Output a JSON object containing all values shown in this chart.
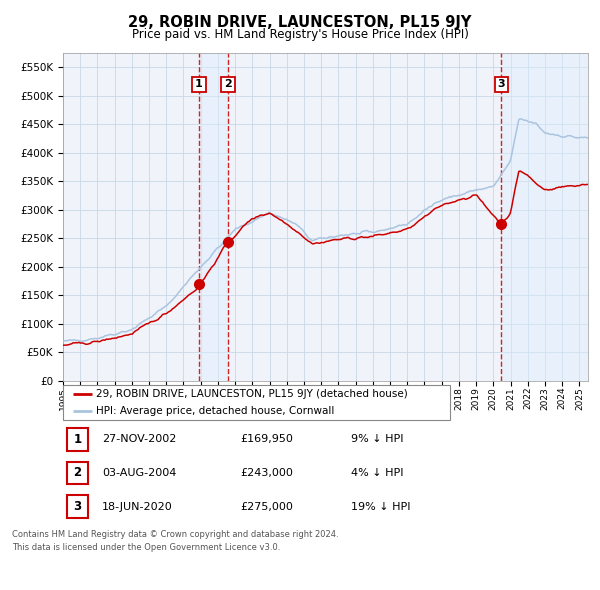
{
  "title": "29, ROBIN DRIVE, LAUNCESTON, PL15 9JY",
  "subtitle": "Price paid vs. HM Land Registry's House Price Index (HPI)",
  "legend_line1": "29, ROBIN DRIVE, LAUNCESTON, PL15 9JY (detached house)",
  "legend_line2": "HPI: Average price, detached house, Cornwall",
  "transactions": [
    {
      "label": "1",
      "date_str": "27-NOV-2002",
      "date_x": 2002.9,
      "price": 169950,
      "pct": "9% ↓ HPI"
    },
    {
      "label": "2",
      "date_str": "03-AUG-2004",
      "date_x": 2004.58,
      "price": 243000,
      "pct": "4% ↓ HPI"
    },
    {
      "label": "3",
      "date_str": "18-JUN-2020",
      "date_x": 2020.46,
      "price": 275000,
      "pct": "19% ↓ HPI"
    }
  ],
  "footnote1": "Contains HM Land Registry data © Crown copyright and database right 2024.",
  "footnote2": "This data is licensed under the Open Government Licence v3.0.",
  "hpi_color": "#aac4e0",
  "price_color": "#cc0000",
  "dot_color": "#cc0000",
  "vline_color": "#cc0000",
  "shade_color": "#ddeeff",
  "grid_color": "#c8d8e8",
  "background_color": "#f0f4fa",
  "ylim": [
    0,
    575000
  ],
  "xlim_start": 1995,
  "xlim_end": 2025.5,
  "yticks": [
    0,
    50000,
    100000,
    150000,
    200000,
    250000,
    300000,
    350000,
    400000,
    450000,
    500000,
    550000
  ]
}
